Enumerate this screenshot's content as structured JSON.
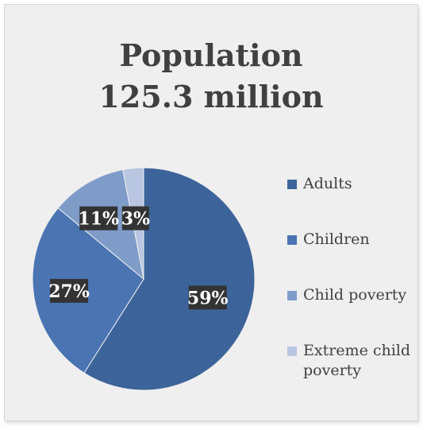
{
  "chart_data": {
    "type": "pie",
    "title": [
      "Population",
      "125.3 million"
    ],
    "categories": [
      "Adults",
      "Children",
      "Child poverty",
      "Extreme child poverty"
    ],
    "values": [
      59,
      27,
      11,
      3
    ],
    "data_labels": [
      "59%",
      "27%",
      "11%",
      "3%"
    ],
    "colors": [
      "#3d649a",
      "#4a74b2",
      "#7f9cc9",
      "#b8c6e2"
    ],
    "legend_position": "right"
  }
}
